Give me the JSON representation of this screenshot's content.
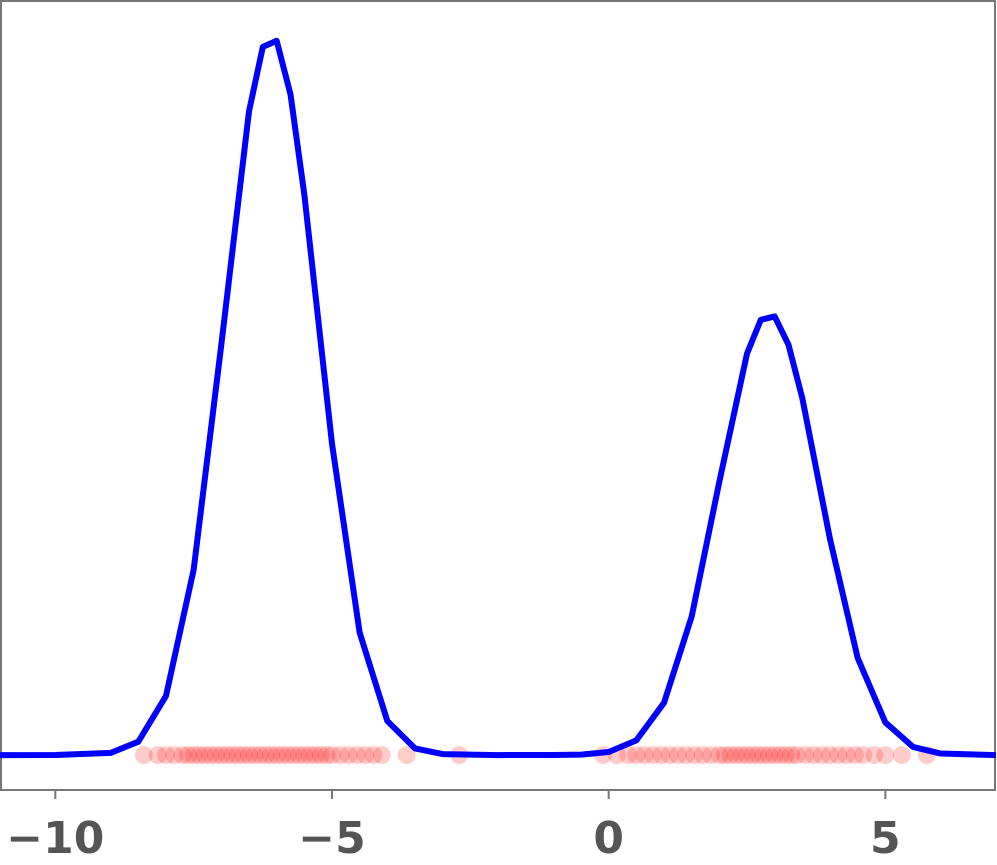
{
  "chart_data": {
    "type": "line",
    "x": [
      -11,
      -10,
      -9,
      -8.5,
      -8,
      -7.5,
      -7,
      -6.5,
      -6.25,
      -6,
      -5.75,
      -5.5,
      -5,
      -4.5,
      -4,
      -3.5,
      -3,
      -2,
      -1,
      -0.5,
      0,
      0.5,
      1,
      1.5,
      2,
      2.5,
      2.75,
      3,
      3.25,
      3.5,
      4,
      4.5,
      5,
      5.5,
      6,
      7
    ],
    "series": [
      {
        "color": "#0000ff",
        "values": [
          0,
          1e-05,
          0.00084,
          0.00524,
          0.0232,
          0.0727,
          0.161,
          0.2524,
          0.2777,
          0.2801,
          0.2591,
          0.2198,
          0.1221,
          0.048,
          0.01334,
          0.00262,
          0.00037,
          0,
          2e-05,
          0.00019,
          0.0012,
          0.00576,
          0.0205,
          0.0543,
          0.1072,
          0.1574,
          0.1707,
          0.172,
          0.1609,
          0.1399,
          0.0847,
          0.0381,
          0.0128,
          0.00319,
          0.00059,
          0
        ]
      }
    ],
    "rug": {
      "color": "#ff0000",
      "x": [
        -8.4,
        -8.15,
        -8.0,
        -7.85,
        -7.7,
        -7.6,
        -7.5,
        -7.4,
        -7.3,
        -7.2,
        -7.1,
        -7.0,
        -6.9,
        -6.8,
        -6.7,
        -6.6,
        -6.5,
        -6.4,
        -6.3,
        -6.2,
        -6.1,
        -6.0,
        -5.9,
        -5.8,
        -5.7,
        -5.6,
        -5.5,
        -5.4,
        -5.3,
        -5.2,
        -5.1,
        -5.0,
        -4.85,
        -4.7,
        -4.55,
        -4.4,
        -4.25,
        -4.1,
        -3.65,
        -2.7,
        -0.1,
        0.15,
        0.35,
        0.5,
        0.65,
        0.8,
        0.95,
        1.1,
        1.25,
        1.4,
        1.55,
        1.7,
        1.85,
        2.0,
        2.1,
        2.2,
        2.3,
        2.4,
        2.5,
        2.6,
        2.7,
        2.8,
        2.9,
        3.0,
        3.1,
        3.2,
        3.3,
        3.4,
        3.55,
        3.7,
        3.85,
        4.0,
        4.15,
        4.3,
        4.45,
        4.6,
        4.8,
        5.0,
        5.3,
        5.75
      ]
    },
    "xlim": [
      -11,
      7
    ],
    "xticks": [
      {
        "value": -10,
        "label": "−10"
      },
      {
        "value": -5,
        "label": "−5"
      },
      0,
      5
    ],
    "ylim": [
      -0.0137,
      0.2957
    ]
  }
}
